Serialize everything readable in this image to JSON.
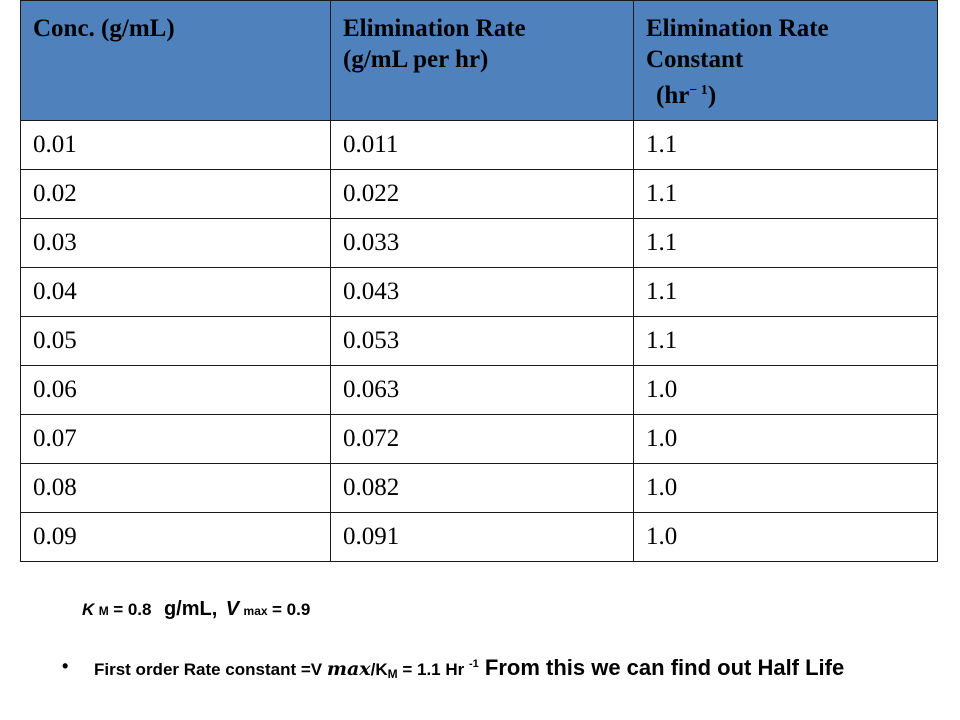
{
  "table": {
    "headers": {
      "conc": "Conc. (g/mL)",
      "rate_line1": "Elimination Rate",
      "rate_line2": "(g/mL per hr)",
      "const_line1": "Elimination Rate",
      "const_line2": "Constant",
      "const_unit_open": "(hr",
      "const_unit_sup": "− 1",
      "const_unit_close": ")"
    },
    "rows": [
      [
        "0.01",
        "0.011",
        "1.1"
      ],
      [
        "0.02",
        "0.022",
        "1.1"
      ],
      [
        "0.03",
        "0.033",
        "1.1"
      ],
      [
        "0.04",
        "0.043",
        "1.1"
      ],
      [
        "0.05",
        "0.053",
        "1.1"
      ],
      [
        "0.06",
        "0.063",
        "1.0"
      ],
      [
        "0.07",
        "0.072",
        "1.0"
      ],
      [
        "0.08",
        "0.082",
        "1.0"
      ],
      [
        "0.09",
        "0.091",
        "1.0"
      ]
    ],
    "header_color": "#4f81bd"
  },
  "km_line": {
    "k": "K",
    "k_sub": "M",
    "k_eq": "= 0.8",
    "unit": "g/mL,",
    "v": "V",
    "v_sub": "max",
    "v_eq": "= 0.9"
  },
  "bullet": {
    "marker": "•",
    "p1": "First order Rate constant =V ",
    "vmax": "max",
    "p2": "/K",
    "km_sub": "M",
    "p3": " = 1.1 Hr ",
    "sup": "-1",
    "p4": " From this we can find out Half Life"
  }
}
